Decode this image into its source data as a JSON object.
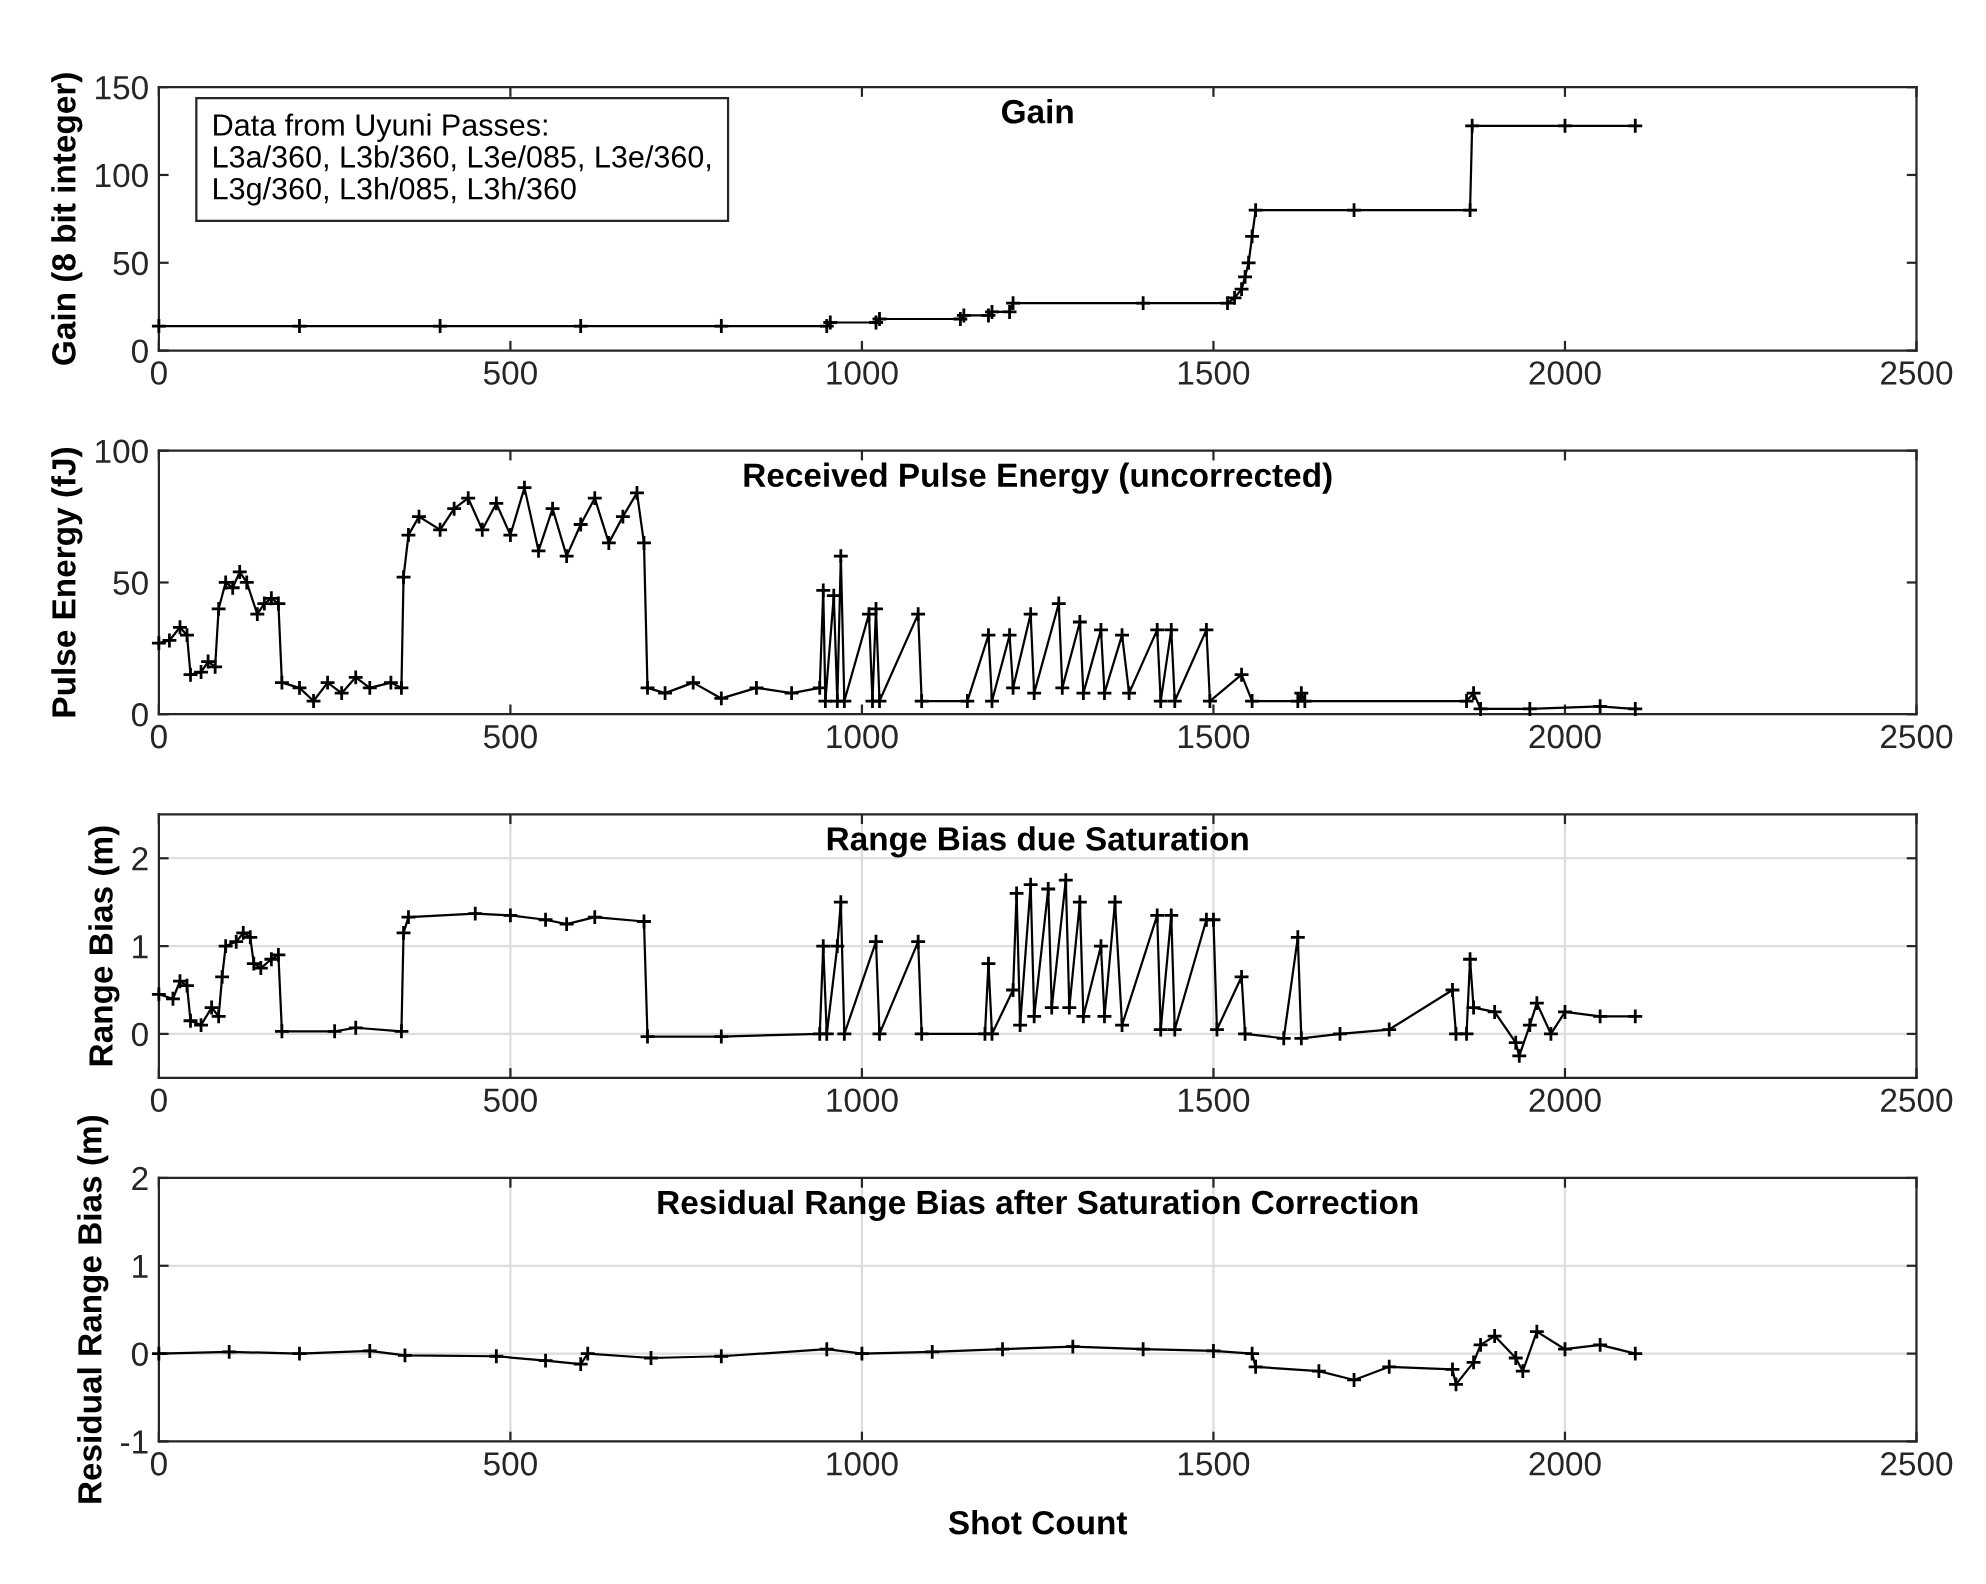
{
  "chart_data": [
    {
      "type": "line",
      "title": "Gain",
      "ylabel": "Gain (8 bit integer)",
      "xlim": [
        0,
        2500
      ],
      "xticks": [
        0,
        500,
        1000,
        1500,
        2000,
        2500
      ],
      "ylim": [
        0,
        150
      ],
      "yticks": [
        0,
        50,
        100,
        150
      ],
      "marker": "cross",
      "line_style": "solid",
      "annotations": [
        "Data from Uyuni Passes:\nL3a/360, L3b/360, L3e/085, L3e/360,\nL3g/360, L3h/085, L3h/360"
      ],
      "series": [
        {
          "color": "#000000",
          "x": [
            0,
            200,
            400,
            600,
            800,
            950,
            955,
            1020,
            1025,
            1140,
            1145,
            1180,
            1185,
            1210,
            1215,
            1400,
            1520,
            1530,
            1540,
            1545,
            1550,
            1555,
            1560,
            1700,
            1865,
            1868,
            2000,
            2100
          ],
          "values": [
            14,
            14,
            14,
            14,
            14,
            14,
            16,
            16,
            18,
            18,
            20,
            20,
            22,
            22,
            27,
            27,
            27,
            30,
            35,
            42,
            50,
            65,
            80,
            80,
            80,
            128,
            128,
            128
          ]
        }
      ]
    },
    {
      "type": "line",
      "title": "Received Pulse Energy (uncorrected)",
      "ylabel": "Pulse Energy (fJ)",
      "xlim": [
        0,
        2500
      ],
      "xticks": [
        0,
        500,
        1000,
        1500,
        2000,
        2500
      ],
      "ylim": [
        0,
        100
      ],
      "yticks": [
        0,
        50,
        100
      ],
      "marker": "cross",
      "line_style": "solid",
      "series": [
        {
          "color": "#000000",
          "x": [
            0,
            15,
            30,
            40,
            45,
            60,
            70,
            80,
            85,
            95,
            105,
            115,
            125,
            140,
            150,
            160,
            170,
            175,
            200,
            220,
            240,
            260,
            280,
            300,
            330,
            345,
            348,
            355,
            370,
            400,
            420,
            440,
            460,
            480,
            500,
            520,
            540,
            560,
            580,
            600,
            620,
            640,
            660,
            680,
            690,
            695,
            720,
            760,
            800,
            850,
            900,
            940,
            945,
            948,
            960,
            965,
            970,
            975,
            1010,
            1015,
            1020,
            1025,
            1080,
            1085,
            1150,
            1180,
            1185,
            1210,
            1215,
            1240,
            1245,
            1280,
            1285,
            1310,
            1315,
            1340,
            1345,
            1370,
            1380,
            1420,
            1425,
            1440,
            1445,
            1490,
            1495,
            1540,
            1555,
            1620,
            1625,
            1630,
            1860,
            1870,
            1880,
            1950,
            2050,
            2100
          ],
          "values": [
            27,
            28,
            33,
            30,
            15,
            16,
            20,
            18,
            40,
            50,
            48,
            54,
            50,
            38,
            42,
            44,
            42,
            12,
            10,
            5,
            12,
            8,
            14,
            10,
            12,
            10,
            52,
            68,
            75,
            70,
            78,
            82,
            70,
            80,
            68,
            86,
            62,
            78,
            60,
            72,
            82,
            65,
            75,
            84,
            65,
            10,
            8,
            12,
            6,
            10,
            8,
            10,
            47,
            5,
            45,
            5,
            60,
            5,
            38,
            5,
            40,
            5,
            38,
            5,
            5,
            30,
            5,
            30,
            10,
            38,
            8,
            42,
            10,
            35,
            8,
            32,
            8,
            30,
            8,
            32,
            5,
            32,
            5,
            32,
            5,
            15,
            5,
            5,
            8,
            5,
            5,
            8,
            2,
            2,
            3,
            2
          ]
        }
      ]
    },
    {
      "type": "line",
      "title": "Range Bias due Saturation",
      "ylabel": "Range Bias (m)",
      "xlim": [
        0,
        2500
      ],
      "xticks": [
        0,
        500,
        1000,
        1500,
        2000,
        2500
      ],
      "ylim": [
        -0.5,
        2.5
      ],
      "yticks": [
        0,
        1,
        2
      ],
      "grid": true,
      "marker": "cross",
      "line_style": "solid",
      "series": [
        {
          "color": "#000000",
          "x": [
            0,
            20,
            30,
            40,
            45,
            60,
            75,
            85,
            90,
            95,
            110,
            120,
            130,
            135,
            145,
            160,
            170,
            175,
            250,
            280,
            345,
            348,
            355,
            450,
            500,
            550,
            580,
            620,
            690,
            695,
            800,
            940,
            945,
            950,
            965,
            970,
            975,
            1020,
            1025,
            1080,
            1085,
            1175,
            1180,
            1185,
            1215,
            1220,
            1225,
            1240,
            1245,
            1265,
            1270,
            1290,
            1295,
            1310,
            1315,
            1340,
            1345,
            1360,
            1370,
            1420,
            1425,
            1440,
            1445,
            1490,
            1500,
            1505,
            1540,
            1545,
            1600,
            1620,
            1625,
            1680,
            1750,
            1840,
            1845,
            1860,
            1865,
            1870,
            1900,
            1930,
            1935,
            1950,
            1960,
            1980,
            2000,
            2050,
            2100
          ],
          "values": [
            0.45,
            0.4,
            0.6,
            0.55,
            0.15,
            0.1,
            0.3,
            0.2,
            0.65,
            1.0,
            1.05,
            1.15,
            1.1,
            0.8,
            0.75,
            0.85,
            0.9,
            0.03,
            0.03,
            0.07,
            0.03,
            1.15,
            1.33,
            1.37,
            1.35,
            1.3,
            1.25,
            1.33,
            1.28,
            -0.03,
            -0.03,
            0.0,
            1.0,
            0.0,
            1.0,
            1.5,
            0.0,
            1.05,
            0.0,
            1.05,
            0.0,
            0.0,
            0.8,
            0.0,
            0.5,
            1.6,
            0.1,
            1.7,
            0.2,
            1.65,
            0.3,
            1.75,
            0.3,
            1.5,
            0.2,
            1.0,
            0.2,
            1.5,
            0.1,
            1.35,
            0.05,
            1.35,
            0.05,
            1.3,
            1.3,
            0.05,
            0.65,
            0.0,
            -0.05,
            1.1,
            -0.05,
            0.0,
            0.05,
            0.5,
            0.0,
            0.0,
            0.85,
            0.3,
            0.25,
            -0.1,
            -0.25,
            0.1,
            0.35,
            0.0,
            0.25,
            0.2,
            0.2
          ]
        }
      ]
    },
    {
      "type": "line",
      "title": "Residual Range Bias after Saturation Correction",
      "ylabel": "Residual Range Bias (m)",
      "xlabel": "Shot Count",
      "xlim": [
        0,
        2500
      ],
      "xticks": [
        0,
        500,
        1000,
        1500,
        2000,
        2500
      ],
      "ylim": [
        -1,
        2
      ],
      "yticks": [
        -1,
        0,
        1,
        2
      ],
      "grid": true,
      "marker": "cross",
      "line_style": "solid",
      "series": [
        {
          "color": "#000000",
          "x": [
            0,
            100,
            200,
            300,
            350,
            480,
            550,
            600,
            610,
            700,
            800,
            950,
            1000,
            1100,
            1200,
            1300,
            1400,
            1500,
            1555,
            1560,
            1650,
            1700,
            1750,
            1840,
            1845,
            1870,
            1880,
            1900,
            1930,
            1940,
            1960,
            2000,
            2050,
            2100
          ],
          "values": [
            0.0,
            0.02,
            0.0,
            0.03,
            -0.02,
            -0.03,
            -0.08,
            -0.12,
            0.0,
            -0.05,
            -0.03,
            0.05,
            0.0,
            0.02,
            0.05,
            0.08,
            0.05,
            0.03,
            0.0,
            -0.15,
            -0.2,
            -0.3,
            -0.15,
            -0.18,
            -0.35,
            -0.1,
            0.1,
            0.2,
            -0.05,
            -0.2,
            0.25,
            0.05,
            0.1,
            0.0
          ]
        }
      ]
    }
  ]
}
